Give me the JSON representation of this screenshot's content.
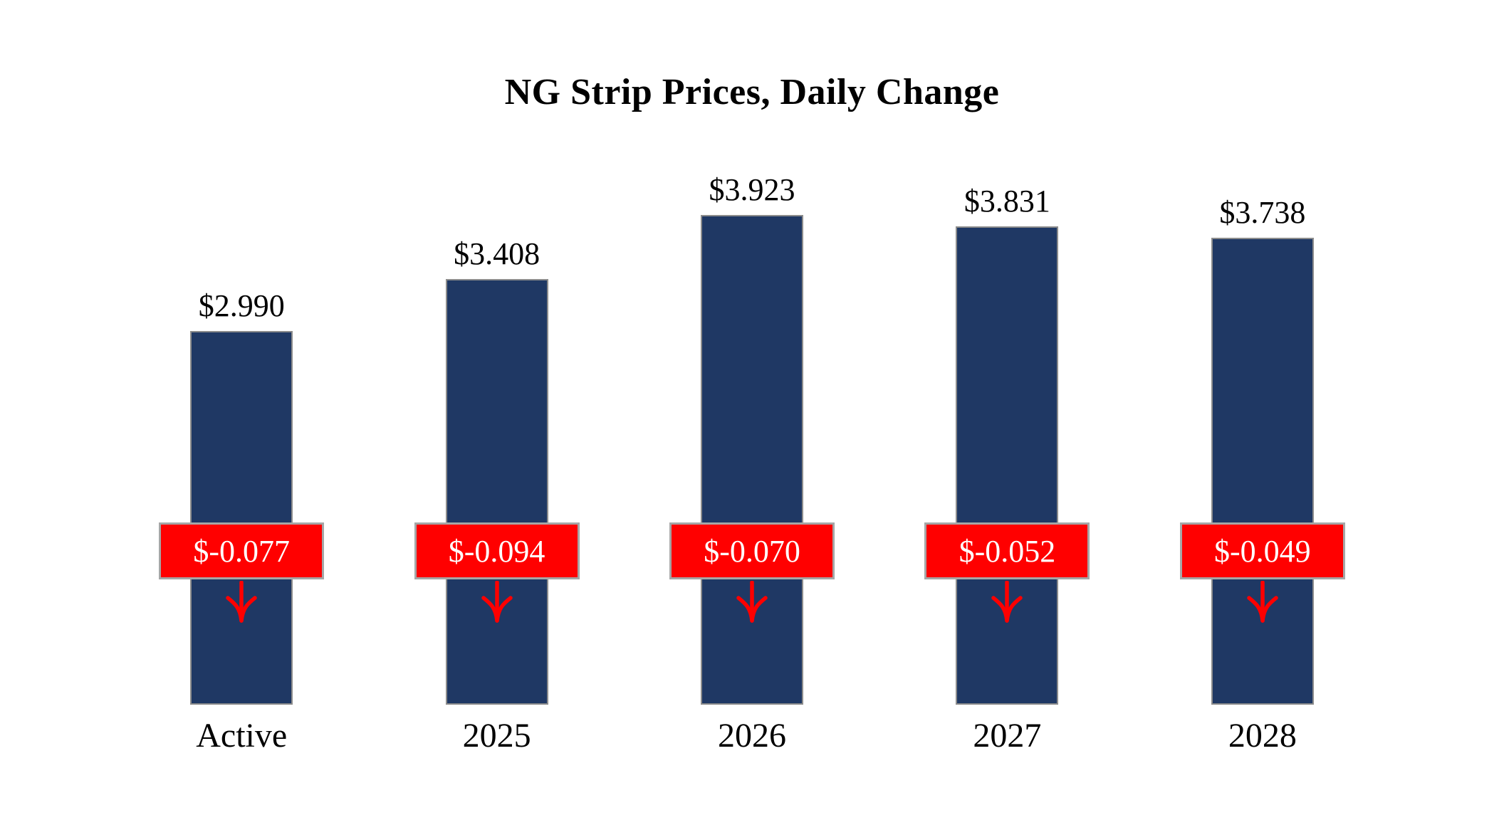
{
  "title": "NG Strip Prices, Daily Change",
  "chart_data": {
    "type": "bar",
    "title": "NG Strip Prices, Daily Change",
    "categories": [
      "Active",
      "2025",
      "2026",
      "2027",
      "2028"
    ],
    "series": [
      {
        "name": "Strip Price",
        "values": [
          2.99,
          3.408,
          3.923,
          3.831,
          3.738
        ]
      },
      {
        "name": "Daily Change",
        "values": [
          -0.077,
          -0.094,
          -0.07,
          -0.052,
          -0.049
        ]
      }
    ],
    "value_labels": [
      "$2.990",
      "$3.408",
      "$3.923",
      "$3.831",
      "$3.738"
    ],
    "change_labels": [
      "$-0.077",
      "$-0.094",
      "$-0.070",
      "$-0.052",
      "$-0.049"
    ],
    "change_direction": "down",
    "xlabel": "",
    "ylabel": "",
    "ylim": [
      0,
      4.2
    ],
    "grid": false,
    "legend": false,
    "bar_color": "#1F3864",
    "change_box_color": "#FF0000",
    "change_text_color": "#FFFFFF",
    "border_color": "#A6A6A6",
    "background_color": "#FFFFFF"
  }
}
